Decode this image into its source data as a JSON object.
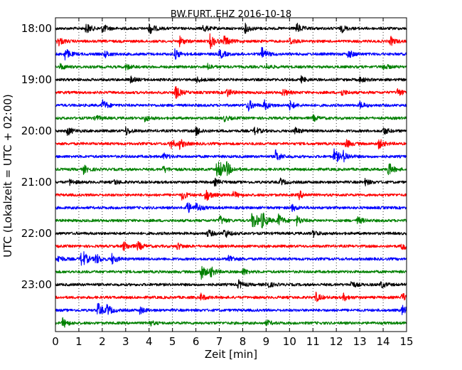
{
  "chart_data": {
    "type": "line",
    "title": "BW.FURT..EHZ 2016-10-18",
    "xlabel": "Zeit  [min]",
    "ylabel": "UTC (Lokalzeit = UTC + 02:00)",
    "xlim": [
      0,
      15
    ],
    "x_ticks": [
      0,
      1,
      2,
      3,
      4,
      5,
      6,
      7,
      8,
      9,
      10,
      11,
      12,
      13,
      14,
      15
    ],
    "x_tick_labels": [
      "0",
      "1",
      "2",
      "3",
      "4",
      "5",
      "6",
      "7",
      "8",
      "9",
      "10",
      "11",
      "12",
      "13",
      "14",
      "15"
    ],
    "y_tick_labels": [
      "18:00",
      "19:00",
      "20:00",
      "21:00",
      "22:00",
      "23:00"
    ],
    "grid": "vertical dotted",
    "colors": [
      "#000000",
      "#ff0000",
      "#0000ff",
      "#008000"
    ],
    "series": [
      {
        "start": "18:00",
        "color": "#000000",
        "events": [
          [
            1.3,
            1.0
          ],
          [
            2.0,
            0.8
          ],
          [
            4.0,
            1.1
          ],
          [
            6.3,
            0.7
          ],
          [
            8.1,
            0.8
          ],
          [
            10.3,
            0.9
          ],
          [
            12.2,
            0.7
          ]
        ]
      },
      {
        "start": "18:15",
        "color": "#ff0000",
        "events": [
          [
            0.1,
            0.9
          ],
          [
            5.3,
            0.8
          ],
          [
            6.6,
            1.3
          ],
          [
            7.2,
            1.0
          ],
          [
            10.0,
            0.7
          ],
          [
            14.3,
            0.8
          ]
        ]
      },
      {
        "start": "18:30",
        "color": "#0000ff",
        "events": [
          [
            0.4,
            1.1
          ],
          [
            2.1,
            0.6
          ],
          [
            5.1,
            0.9
          ],
          [
            7.0,
            0.9
          ],
          [
            8.8,
            1.2
          ],
          [
            12.5,
            0.8
          ]
        ]
      },
      {
        "start": "18:45",
        "color": "#008000",
        "events": [
          [
            0.2,
            0.5
          ],
          [
            3.0,
            0.5
          ],
          [
            6.5,
            0.5
          ],
          [
            9.0,
            0.5
          ],
          [
            14.0,
            0.6
          ]
        ]
      },
      {
        "start": "19:00",
        "color": "#000000",
        "events": [
          [
            3.2,
            0.5
          ],
          [
            6.0,
            0.5
          ],
          [
            10.5,
            0.5
          ],
          [
            13.0,
            0.5
          ]
        ]
      },
      {
        "start": "19:15",
        "color": "#ff0000",
        "events": [
          [
            5.1,
            1.3
          ],
          [
            7.3,
            0.8
          ],
          [
            9.7,
            0.7
          ],
          [
            12.2,
            0.6
          ],
          [
            14.6,
            0.7
          ]
        ]
      },
      {
        "start": "19:30",
        "color": "#0000ff",
        "events": [
          [
            2.0,
            1.0
          ],
          [
            8.2,
            1.2
          ],
          [
            8.9,
            0.9
          ],
          [
            10.0,
            0.8
          ],
          [
            13.0,
            0.6
          ]
        ]
      },
      {
        "start": "19:45",
        "color": "#008000",
        "events": [
          [
            1.7,
            0.5
          ],
          [
            3.8,
            0.6
          ],
          [
            7.2,
            0.5
          ],
          [
            11.0,
            0.5
          ]
        ]
      },
      {
        "start": "20:00",
        "color": "#000000",
        "events": [
          [
            0.5,
            0.8
          ],
          [
            3.0,
            0.7
          ],
          [
            6.0,
            0.8
          ],
          [
            8.5,
            0.7
          ],
          [
            10.2,
            0.7
          ],
          [
            14.0,
            0.7
          ]
        ]
      },
      {
        "start": "20:15",
        "color": "#ff0000",
        "events": [
          [
            4.9,
            0.9
          ],
          [
            5.3,
            0.8
          ],
          [
            12.4,
            0.8
          ],
          [
            13.8,
            0.9
          ]
        ]
      },
      {
        "start": "20:30",
        "color": "#0000ff",
        "events": [
          [
            4.6,
            0.6
          ],
          [
            9.4,
            1.1
          ],
          [
            11.9,
            1.5
          ],
          [
            12.3,
            0.8
          ]
        ]
      },
      {
        "start": "20:45",
        "color": "#008000",
        "events": [
          [
            1.2,
            0.7
          ],
          [
            4.6,
            0.6
          ],
          [
            6.9,
            3.2
          ],
          [
            7.3,
            1.1
          ],
          [
            14.2,
            1.3
          ]
        ]
      },
      {
        "start": "21:00",
        "color": "#000000",
        "events": [
          [
            0.6,
            0.5
          ],
          [
            2.5,
            0.5
          ],
          [
            6.8,
            0.6
          ],
          [
            9.6,
            0.6
          ],
          [
            13.2,
            0.6
          ]
        ]
      },
      {
        "start": "21:15",
        "color": "#ff0000",
        "events": [
          [
            5.4,
            0.8
          ],
          [
            6.4,
            1.3
          ],
          [
            7.6,
            0.6
          ],
          [
            10.4,
            0.7
          ]
        ]
      },
      {
        "start": "21:30",
        "color": "#0000ff",
        "events": [
          [
            5.6,
            1.2
          ],
          [
            6.0,
            0.8
          ],
          [
            10.1,
            0.6
          ]
        ]
      },
      {
        "start": "21:45",
        "color": "#008000",
        "events": [
          [
            7.0,
            0.9
          ],
          [
            8.4,
            2.2
          ],
          [
            8.8,
            1.8
          ],
          [
            9.5,
            1.2
          ],
          [
            10.3,
            0.8
          ],
          [
            12.9,
            0.7
          ]
        ]
      },
      {
        "start": "22:00",
        "color": "#000000",
        "events": [
          [
            6.5,
            0.7
          ],
          [
            7.2,
            0.9
          ],
          [
            11.0,
            0.6
          ]
        ]
      },
      {
        "start": "22:15",
        "color": "#ff0000",
        "events": [
          [
            2.9,
            0.9
          ],
          [
            3.5,
            0.8
          ],
          [
            5.2,
            0.6
          ],
          [
            14.8,
            0.8
          ]
        ]
      },
      {
        "start": "22:30",
        "color": "#0000ff",
        "events": [
          [
            0.1,
            0.7
          ],
          [
            1.1,
            2.1
          ],
          [
            1.7,
            1.0
          ],
          [
            2.4,
            0.9
          ],
          [
            7.4,
            0.8
          ]
        ]
      },
      {
        "start": "22:45",
        "color": "#008000",
        "events": [
          [
            6.2,
            1.5
          ],
          [
            6.6,
            0.9
          ],
          [
            8.0,
            0.6
          ]
        ]
      },
      {
        "start": "23:00",
        "color": "#000000",
        "events": [
          [
            7.8,
            0.8
          ],
          [
            9.0,
            0.7
          ],
          [
            12.6,
            0.7
          ],
          [
            13.9,
            0.6
          ]
        ]
      },
      {
        "start": "23:15",
        "color": "#ff0000",
        "events": [
          [
            6.2,
            0.6
          ],
          [
            11.1,
            0.9
          ],
          [
            12.3,
            0.6
          ],
          [
            14.8,
            0.8
          ]
        ]
      },
      {
        "start": "23:30",
        "color": "#0000ff",
        "events": [
          [
            1.8,
            1.3
          ],
          [
            2.2,
            0.9
          ],
          [
            3.6,
            0.6
          ],
          [
            14.8,
            0.9
          ]
        ]
      },
      {
        "start": "23:45",
        "color": "#008000",
        "events": [
          [
            0.3,
            0.9
          ],
          [
            4.0,
            0.5
          ],
          [
            9.0,
            0.5
          ]
        ]
      }
    ]
  }
}
